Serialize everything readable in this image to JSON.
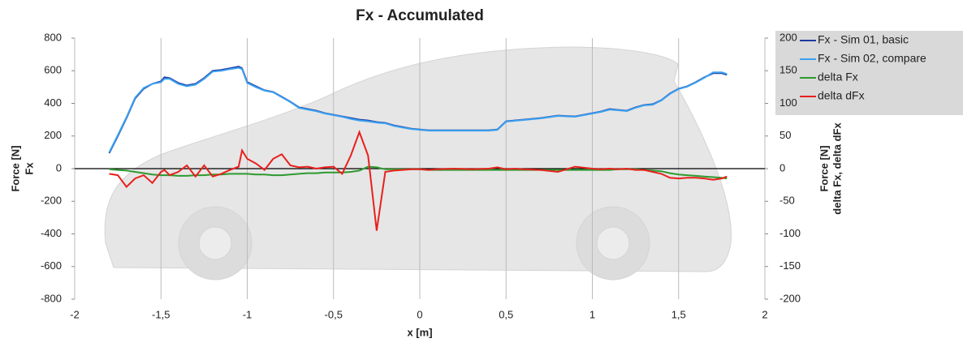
{
  "chart_data": {
    "type": "line",
    "title": "Fx - Accumulated",
    "x_label": "x [m]",
    "y_label": [
      "Force [N]",
      "Fx"
    ],
    "y2_label": [
      "Force [N]",
      "delta Fx, delta dFx"
    ],
    "x": [
      -1.8,
      -1.75,
      -1.7,
      -1.65,
      -1.6,
      -1.55,
      -1.5,
      -1.48,
      -1.45,
      -1.4,
      -1.35,
      -1.3,
      -1.25,
      -1.2,
      -1.15,
      -1.1,
      -1.05,
      -1.03,
      -1.0,
      -0.95,
      -0.9,
      -0.85,
      -0.8,
      -0.75,
      -0.7,
      -0.65,
      -0.6,
      -0.55,
      -0.5,
      -0.45,
      -0.4,
      -0.35,
      -0.3,
      -0.25,
      -0.2,
      -0.15,
      -0.1,
      -0.05,
      0,
      0.05,
      0.1,
      0.2,
      0.3,
      0.4,
      0.45,
      0.5,
      0.55,
      0.6,
      0.7,
      0.8,
      0.9,
      1.0,
      1.05,
      1.1,
      1.15,
      1.2,
      1.25,
      1.3,
      1.35,
      1.4,
      1.45,
      1.5,
      1.55,
      1.6,
      1.65,
      1.7,
      1.75,
      1.78
    ],
    "series": [
      {
        "name": "Fx - Sim 01, basic",
        "color": "#1f3a9e",
        "values": [
          95,
          200,
          310,
          430,
          490,
          520,
          535,
          560,
          555,
          525,
          510,
          520,
          555,
          600,
          605,
          615,
          625,
          615,
          530,
          505,
          480,
          470,
          440,
          410,
          375,
          365,
          355,
          340,
          330,
          320,
          310,
          300,
          295,
          285,
          280,
          265,
          255,
          245,
          240,
          235,
          235,
          235,
          235,
          235,
          240,
          290,
          295,
          300,
          310,
          325,
          320,
          340,
          350,
          365,
          360,
          355,
          375,
          390,
          395,
          420,
          460,
          490,
          505,
          530,
          560,
          585,
          585,
          575
        ]
      },
      {
        "name": "Fx - Sim 02, compare",
        "color": "#3aa0f0",
        "values": [
          100,
          205,
          315,
          435,
          495,
          520,
          530,
          550,
          550,
          520,
          505,
          515,
          550,
          595,
          600,
          610,
          618,
          610,
          525,
          500,
          478,
          468,
          438,
          408,
          372,
          362,
          352,
          338,
          328,
          318,
          305,
          295,
          290,
          282,
          278,
          262,
          252,
          243,
          238,
          233,
          233,
          233,
          233,
          233,
          238,
          288,
          293,
          298,
          308,
          323,
          318,
          338,
          348,
          362,
          358,
          353,
          373,
          388,
          392,
          418,
          458,
          488,
          503,
          528,
          558,
          590,
          590,
          580
        ]
      },
      {
        "name": "delta Fx",
        "color": "#2e9a2e",
        "axis": "y2",
        "values": [
          -1,
          -2,
          -3,
          -5,
          -7,
          -9,
          -10,
          -10,
          -10,
          -11,
          -11,
          -10,
          -10,
          -9,
          -9,
          -8,
          -8,
          -8,
          -8,
          -9,
          -9,
          -10,
          -10,
          -9,
          -8,
          -7,
          -7,
          -6,
          -6,
          -6,
          -5,
          -3,
          3,
          2,
          -1,
          -1,
          -1,
          -1,
          -1,
          -2,
          -2,
          -2,
          -2,
          -2,
          -2,
          -2,
          -2,
          -2,
          -2,
          -2,
          -2,
          -2,
          -2,
          -2,
          -1,
          -1,
          -1,
          -2,
          -3,
          -4,
          -7,
          -9,
          -10,
          -11,
          -12,
          -13,
          -14,
          -15
        ]
      },
      {
        "name": "delta dFx",
        "color": "#e8201c",
        "axis": "y2",
        "values": [
          -8,
          -10,
          -28,
          -15,
          -10,
          -22,
          -5,
          -2,
          -10,
          -5,
          5,
          -12,
          5,
          -12,
          -8,
          -2,
          3,
          28,
          15,
          8,
          -2,
          15,
          22,
          5,
          2,
          3,
          0,
          2,
          3,
          -8,
          20,
          56,
          20,
          -95,
          -5,
          -3,
          -2,
          -1,
          -1,
          -2,
          -1,
          0,
          -1,
          0,
          2,
          -1,
          0,
          -1,
          -2,
          -5,
          3,
          0,
          -1,
          0,
          -1,
          0,
          -2,
          -2,
          -5,
          -8,
          -14,
          -15,
          -14,
          -14,
          -15,
          -17,
          -15,
          -12
        ]
      }
    ],
    "xlim": [
      -2,
      2
    ],
    "xticks": [
      -2,
      {
        "value": -1.5,
        "label": "-1,5"
      },
      -1,
      {
        "value": -0.5,
        "label": "-0,5"
      },
      0,
      {
        "value": 0.5,
        "label": "0,5"
      },
      1,
      {
        "value": 1.5,
        "label": "1,5"
      },
      2
    ],
    "ylim": [
      -800,
      800
    ],
    "yticks": [
      -800,
      -600,
      -400,
      -200,
      0,
      200,
      400,
      600,
      800
    ],
    "y2lim": [
      -200,
      200
    ],
    "y2ticks": [
      -200,
      -150,
      -100,
      -50,
      0,
      50,
      100,
      150,
      200
    ],
    "grid": "x",
    "legend": "right"
  }
}
